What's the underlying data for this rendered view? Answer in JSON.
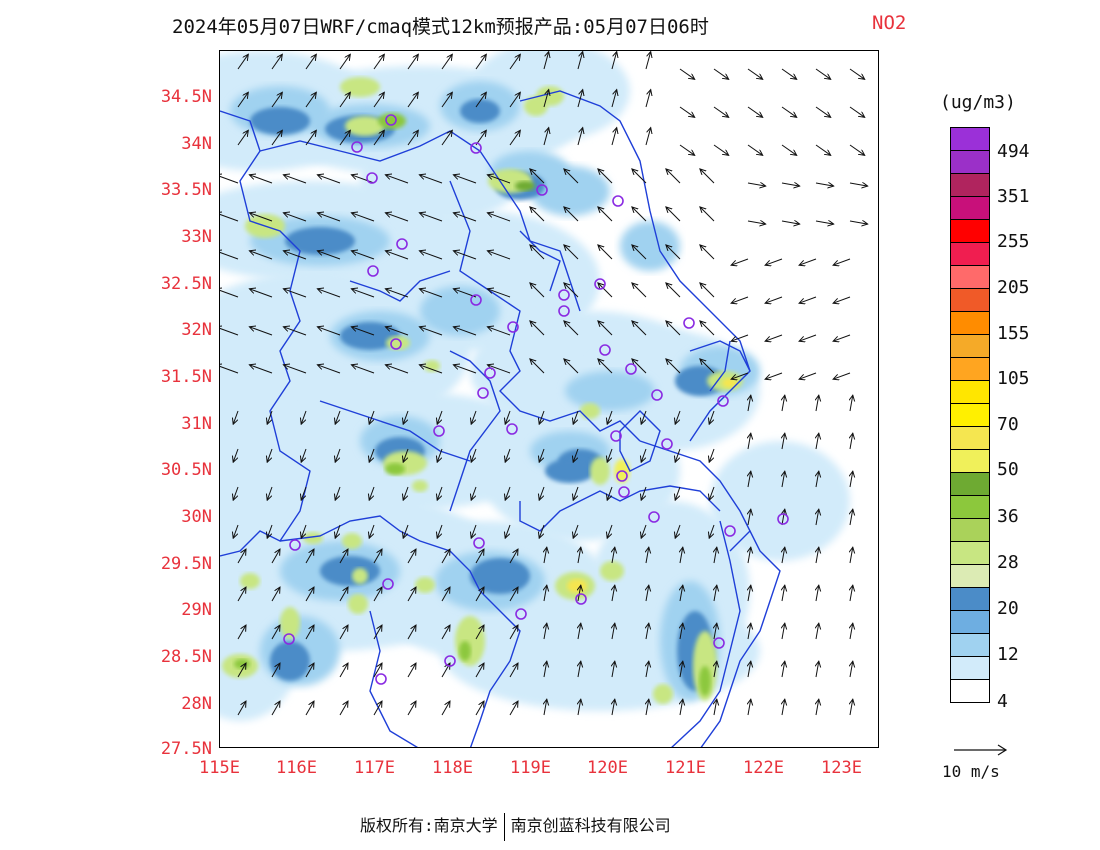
{
  "title": {
    "main": "2024年05月07日WRF/cmaq模式12km预报产品:05月07日06时",
    "species": "NO2"
  },
  "axes": {
    "lat_labels": [
      "34.5N",
      "34N",
      "33.5N",
      "33N",
      "32.5N",
      "32N",
      "31.5N",
      "31N",
      "30.5N",
      "30N",
      "29.5N",
      "29N",
      "28.5N",
      "28N",
      "27.5N"
    ],
    "lon_labels": [
      "115E",
      "116E",
      "117E",
      "118E",
      "119E",
      "120E",
      "121E",
      "122E",
      "123E"
    ]
  },
  "legend": {
    "unit": "(ug/m3)",
    "labels": [
      "494",
      "351",
      "255",
      "205",
      "155",
      "105",
      "70",
      "50",
      "36",
      "28",
      "20",
      "12",
      "4"
    ],
    "colors": [
      "#9b30d8",
      "#9b30c8",
      "#b0245e",
      "#c8107a",
      "#ff0000",
      "#f01e50",
      "#ff6a6a",
      "#f05a28",
      "#ff8c00",
      "#f5aa28",
      "#ffa520",
      "#ffe600",
      "#fff000",
      "#f5e650",
      "#f0f05a",
      "#6eaa32",
      "#8cc83c",
      "#aad25a",
      "#c8e682",
      "#dcebb4",
      "#4b8cc8",
      "#6eaee1",
      "#a0d2f0",
      "#d2ebfa",
      "#ffffff"
    ],
    "wind_ref": "10 m/s"
  },
  "footer": {
    "left": "版权所有:南京大学",
    "right": "南京创蓝科技有限公司"
  }
}
